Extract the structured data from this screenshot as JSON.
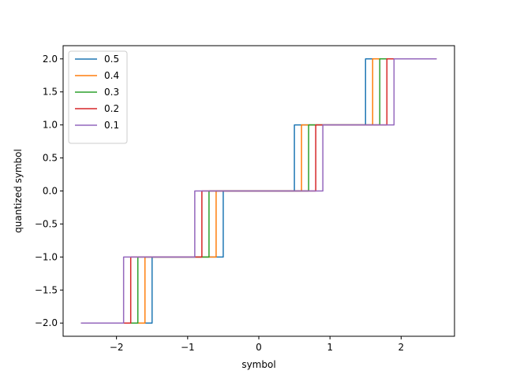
{
  "chart_data": {
    "type": "line",
    "xlabel": "symbol",
    "ylabel": "quantized symbol",
    "xlim": [
      -2.75,
      2.75
    ],
    "ylim": [
      -2.2,
      2.2
    ],
    "x_ticks": [
      -2,
      -1,
      0,
      1,
      2
    ],
    "x_tick_labels": [
      "−2",
      "−1",
      "0",
      "1",
      "2"
    ],
    "y_ticks": [
      -2.0,
      -1.5,
      -1.0,
      -0.5,
      0.0,
      0.5,
      1.0,
      1.5,
      2.0
    ],
    "y_tick_labels": [
      "−2.0",
      "−1.5",
      "−1.0",
      "−0.5",
      "0.0",
      "0.5",
      "1.0",
      "1.5",
      "2.0"
    ],
    "grid": false,
    "legend_position": "top-left",
    "series": [
      {
        "name": "0.5",
        "color": "#1f77b4",
        "x": [
          -2.5,
          -1.5,
          -1.5,
          -0.5,
          -0.5,
          0.5,
          0.5,
          1.5,
          1.5,
          2.5
        ],
        "y": [
          -2,
          -2,
          -1,
          -1,
          0,
          0,
          1,
          1,
          2,
          2
        ]
      },
      {
        "name": "0.4",
        "color": "#ff7f0e",
        "x": [
          -2.5,
          -1.6,
          -1.6,
          -0.6,
          -0.6,
          0.6,
          0.6,
          1.6,
          1.6,
          2.5
        ],
        "y": [
          -2,
          -2,
          -1,
          -1,
          0,
          0,
          1,
          1,
          2,
          2
        ]
      },
      {
        "name": "0.3",
        "color": "#2ca02c",
        "x": [
          -2.5,
          -1.7,
          -1.7,
          -0.7,
          -0.7,
          0.7,
          0.7,
          1.7,
          1.7,
          2.5
        ],
        "y": [
          -2,
          -2,
          -1,
          -1,
          0,
          0,
          1,
          1,
          2,
          2
        ]
      },
      {
        "name": "0.2",
        "color": "#d62728",
        "x": [
          -2.5,
          -1.8,
          -1.8,
          -0.8,
          -0.8,
          0.8,
          0.8,
          1.8,
          1.8,
          2.5
        ],
        "y": [
          -2,
          -2,
          -1,
          -1,
          0,
          0,
          1,
          1,
          2,
          2
        ]
      },
      {
        "name": "0.1",
        "color": "#9467bd",
        "x": [
          -2.5,
          -1.9,
          -1.9,
          -0.9,
          -0.9,
          0.9,
          0.9,
          1.9,
          1.9,
          2.5
        ],
        "y": [
          -2,
          -2,
          -1,
          -1,
          0,
          0,
          1,
          1,
          2,
          2
        ]
      }
    ]
  }
}
